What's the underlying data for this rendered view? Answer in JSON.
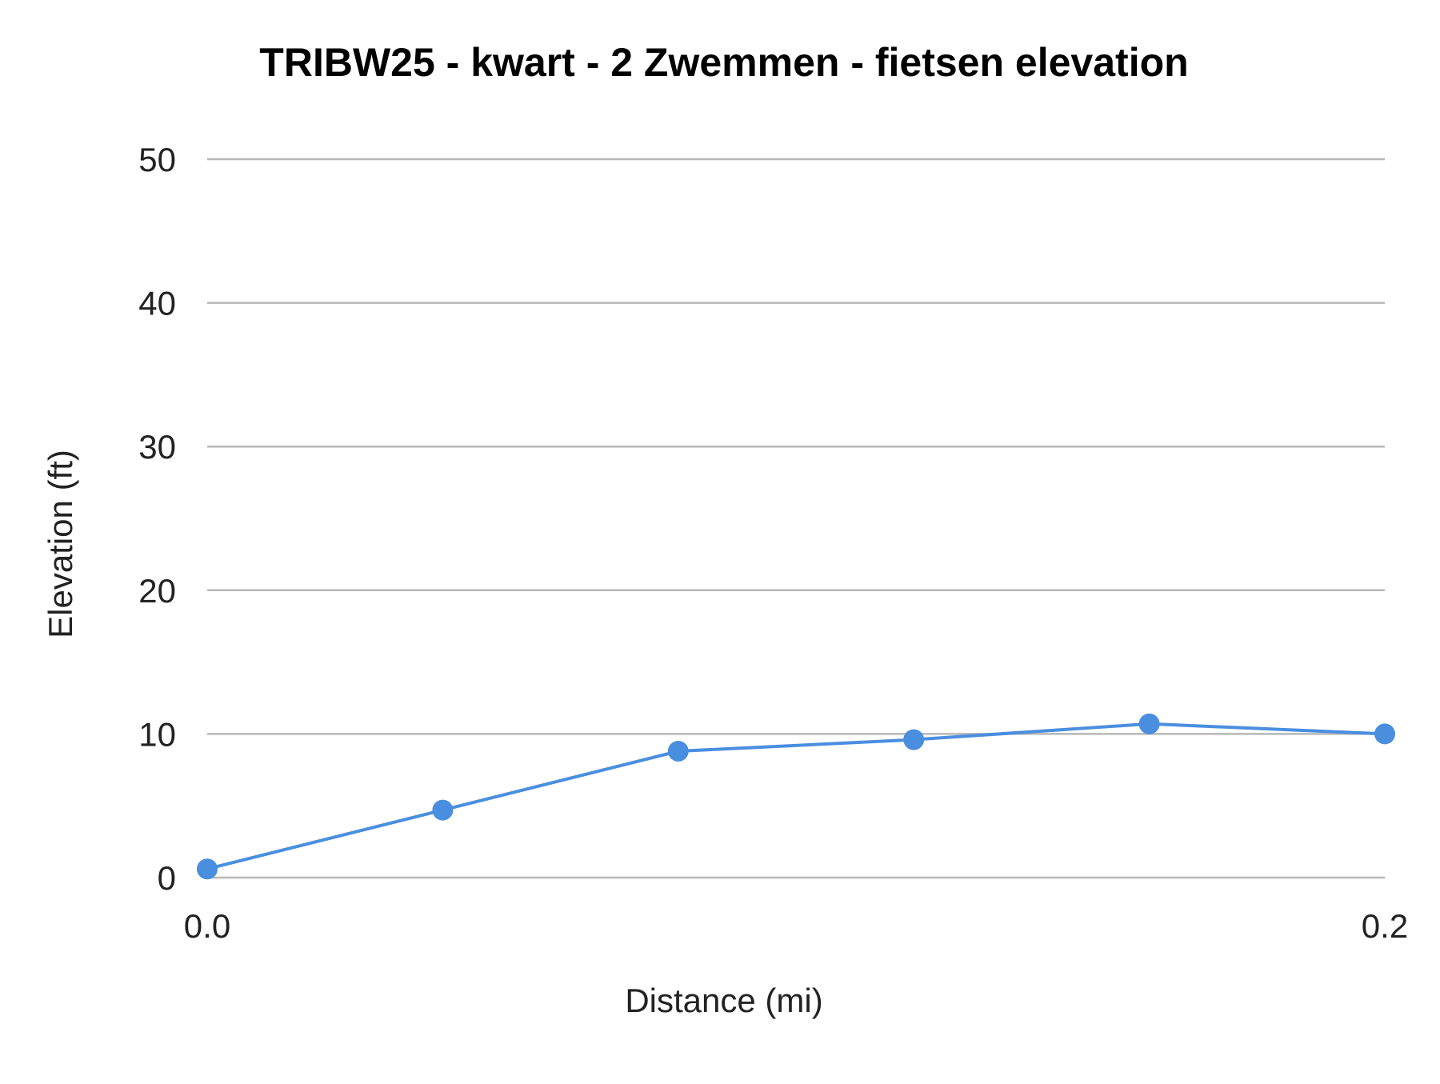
{
  "chart_data": {
    "type": "line",
    "title": "TRIBW25 - kwart - 2 Zwemmen - fietsen elevation",
    "xlabel": "Distance (mi)",
    "ylabel": "Elevation (ft)",
    "xlim": [
      0.0,
      0.2
    ],
    "ylim": [
      0,
      50
    ],
    "x_ticks": [
      {
        "value": 0.0,
        "label": "0.0"
      },
      {
        "value": 0.2,
        "label": "0.2"
      }
    ],
    "y_ticks": [
      {
        "value": 0,
        "label": "0"
      },
      {
        "value": 10,
        "label": "10"
      },
      {
        "value": 20,
        "label": "20"
      },
      {
        "value": 30,
        "label": "30"
      },
      {
        "value": 40,
        "label": "40"
      },
      {
        "value": 50,
        "label": "50"
      }
    ],
    "grid": "horizontal",
    "legend": "none",
    "series": [
      {
        "color": "#4a8ee0",
        "x": [
          0.0,
          0.04,
          0.08,
          0.12,
          0.16,
          0.2
        ],
        "y": [
          0.6,
          4.7,
          8.8,
          9.6,
          10.7,
          10.0
        ]
      }
    ]
  }
}
